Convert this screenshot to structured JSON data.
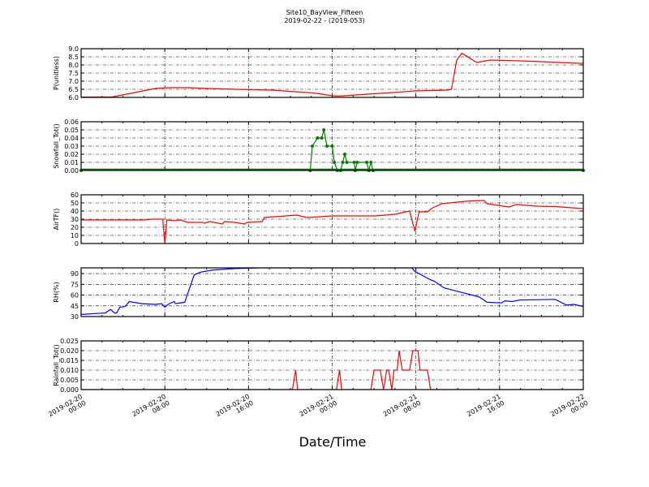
{
  "title": "Site10_BayView_Fifteen",
  "subtitle": "2019-02-22 - (2019-053)",
  "chart_data": {
    "type": "line",
    "xlabel": "Date/Time",
    "xlim": [
      "2019-02-20 00:00",
      "2019-02-22 00:00"
    ],
    "xticks": [
      "2019-02-20 00:00",
      "2019-02-20 08:00",
      "2019-02-20 16:00",
      "2019-02-21 00:00",
      "2019-02-21 08:00",
      "2019-02-21 16:00",
      "2019-02-22 00:00"
    ],
    "xtick_labels": [
      [
        "2019-02-20",
        "00:00"
      ],
      [
        "2019-02-20",
        "08:00"
      ],
      [
        "2019-02-20",
        "16:00"
      ],
      [
        "2019-02-21",
        "00:00"
      ],
      [
        "2019-02-21",
        "08:00"
      ],
      [
        "2019-02-21",
        "16:00"
      ],
      [
        "2019-02-22",
        "00:00"
      ]
    ],
    "grid": true,
    "panels": [
      {
        "ylabel": "P(unitless)",
        "color": "#ff0000",
        "markers": false,
        "ylim": [
          6.0,
          9.0
        ],
        "yticks": [
          "6.0",
          "6.5",
          "7.0",
          "7.5",
          "8.0",
          "8.5",
          "9.0"
        ],
        "points": [
          [
            "2019-02-20 00:00",
            6.02
          ],
          [
            "2019-02-20 03:00",
            6.03
          ],
          [
            "2019-02-20 07:06",
            6.55
          ],
          [
            "2019-02-20 08:30",
            6.6
          ],
          [
            "2019-02-20 10:12",
            6.6
          ],
          [
            "2019-02-20 12:00",
            6.55
          ],
          [
            "2019-02-20 14:42",
            6.5
          ],
          [
            "2019-02-20 18:12",
            6.45
          ],
          [
            "2019-02-20 21:36",
            6.3
          ],
          [
            "2019-02-20 22:30",
            6.25
          ],
          [
            "2019-02-21 00:00",
            6.1
          ],
          [
            "2019-02-21 00:42",
            6.08
          ],
          [
            "2019-02-21 03:48",
            6.22
          ],
          [
            "2019-02-21 05:54",
            6.3
          ],
          [
            "2019-02-21 07:54",
            6.4
          ],
          [
            "2019-02-21 11:00",
            6.45
          ],
          [
            "2019-02-21 11:24",
            6.5
          ],
          [
            "2019-02-21 11:54",
            8.3
          ],
          [
            "2019-02-21 12:24",
            8.72
          ],
          [
            "2019-02-21 13:48",
            8.15
          ],
          [
            "2019-02-21 15:06",
            8.3
          ],
          [
            "2019-02-21 18:00",
            8.25
          ],
          [
            "2019-02-21 23:42",
            8.1
          ],
          [
            "2019-02-22 00:00",
            8.1
          ]
        ]
      },
      {
        "ylabel": "Snowfall_Tot()",
        "color": "#007f00",
        "markers": true,
        "ylim": [
          0,
          0.06
        ],
        "yticks": [
          "0.00",
          "0.01",
          "0.02",
          "0.03",
          "0.04",
          "0.05",
          "0.06"
        ],
        "points": [
          [
            "2019-02-20 00:00",
            0
          ],
          [
            "2019-02-20 21:54",
            0
          ],
          [
            "2019-02-20 22:06",
            0.03
          ],
          [
            "2019-02-20 22:36",
            0.04
          ],
          [
            "2019-02-20 23:00",
            0.04
          ],
          [
            "2019-02-20 23:12",
            0.05
          ],
          [
            "2019-02-20 23:30",
            0.03
          ],
          [
            "2019-02-21 00:00",
            0.03
          ],
          [
            "2019-02-21 00:12",
            0.01
          ],
          [
            "2019-02-21 00:30",
            0
          ],
          [
            "2019-02-21 00:48",
            0
          ],
          [
            "2019-02-21 01:00",
            0.01
          ],
          [
            "2019-02-21 01:12",
            0.02
          ],
          [
            "2019-02-21 01:24",
            0.01
          ],
          [
            "2019-02-21 02:06",
            0.01
          ],
          [
            "2019-02-21 02:12",
            0
          ],
          [
            "2019-02-21 02:24",
            0.01
          ],
          [
            "2019-02-21 03:18",
            0.01
          ],
          [
            "2019-02-21 03:30",
            0
          ],
          [
            "2019-02-21 03:42",
            0.01
          ],
          [
            "2019-02-21 03:54",
            0
          ],
          [
            "2019-02-22 00:00",
            0
          ]
        ]
      },
      {
        "ylabel": "AirTF()",
        "color": "#ff0000",
        "markers": false,
        "ylim": [
          0,
          60
        ],
        "yticks": [
          "0",
          "10",
          "20",
          "30",
          "40",
          "50",
          "60"
        ],
        "points": [
          [
            "2019-02-20 00:00",
            29
          ],
          [
            "2019-02-20 06:00",
            29
          ],
          [
            "2019-02-20 06:48",
            30
          ],
          [
            "2019-02-20 07:48",
            30
          ],
          [
            "2019-02-20 08:00",
            0
          ],
          [
            "2019-02-20 08:12",
            29
          ],
          [
            "2019-02-20 08:54",
            28
          ],
          [
            "2019-02-20 09:30",
            29
          ],
          [
            "2019-02-20 10:12",
            26
          ],
          [
            "2019-02-20 11:36",
            26
          ],
          [
            "2019-02-20 11:48",
            25
          ],
          [
            "2019-02-20 12:18",
            27
          ],
          [
            "2019-02-20 13:30",
            24
          ],
          [
            "2019-02-20 13:42",
            27
          ],
          [
            "2019-02-20 14:42",
            26
          ],
          [
            "2019-02-20 15:36",
            24
          ],
          [
            "2019-02-20 15:54",
            26
          ],
          [
            "2019-02-20 17:18",
            27
          ],
          [
            "2019-02-20 17:30",
            32
          ],
          [
            "2019-02-20 20:36",
            35
          ],
          [
            "2019-02-20 21:36",
            32
          ],
          [
            "2019-02-21 00:00",
            34
          ],
          [
            "2019-02-21 04:06",
            34
          ],
          [
            "2019-02-21 06:00",
            36
          ],
          [
            "2019-02-21 07:24",
            40
          ],
          [
            "2019-02-21 07:54",
            15
          ],
          [
            "2019-02-21 08:18",
            39
          ],
          [
            "2019-02-21 09:06",
            39
          ],
          [
            "2019-02-21 09:36",
            44
          ],
          [
            "2019-02-21 10:30",
            49
          ],
          [
            "2019-02-21 12:42",
            52
          ],
          [
            "2019-02-21 14:30",
            53
          ],
          [
            "2019-02-21 14:48",
            49
          ],
          [
            "2019-02-21 16:54",
            45
          ],
          [
            "2019-02-21 17:36",
            48
          ],
          [
            "2019-02-21 19:36",
            46
          ],
          [
            "2019-02-21 21:18",
            45.5
          ],
          [
            "2019-02-22 00:00",
            43
          ]
        ]
      },
      {
        "ylabel": "RH(%)",
        "color": "#0000ff",
        "markers": false,
        "ylim": [
          30,
          98
        ],
        "yticks": [
          "30",
          "45",
          "60",
          "75",
          "90"
        ],
        "points": [
          [
            "2019-02-20 00:00",
            33
          ],
          [
            "2019-02-20 02:18",
            35
          ],
          [
            "2019-02-20 02:48",
            40
          ],
          [
            "2019-02-20 03:12",
            35
          ],
          [
            "2019-02-20 03:24",
            35
          ],
          [
            "2019-02-20 03:42",
            43
          ],
          [
            "2019-02-20 04:12",
            44
          ],
          [
            "2019-02-20 04:36",
            51
          ],
          [
            "2019-02-20 05:48",
            48
          ],
          [
            "2019-02-20 07:06",
            47
          ],
          [
            "2019-02-20 07:42",
            48
          ],
          [
            "2019-02-20 08:00",
            43
          ],
          [
            "2019-02-20 08:18",
            47
          ],
          [
            "2019-02-20 08:54",
            51
          ],
          [
            "2019-02-20 09:00",
            48
          ],
          [
            "2019-02-20 09:54",
            50
          ],
          [
            "2019-02-20 10:48",
            88
          ],
          [
            "2019-02-20 11:24",
            92
          ],
          [
            "2019-02-20 12:36",
            95
          ],
          [
            "2019-02-20 14:42",
            97
          ],
          [
            "2019-02-20 17:06",
            98
          ],
          [
            "2019-02-20 17:30",
            100
          ],
          [
            "2019-02-21 07:36",
            100
          ],
          [
            "2019-02-21 07:54",
            93
          ],
          [
            "2019-02-21 09:18",
            82
          ],
          [
            "2019-02-21 09:48",
            79
          ],
          [
            "2019-02-21 10:42",
            70
          ],
          [
            "2019-02-21 12:00",
            65
          ],
          [
            "2019-02-21 13:06",
            61
          ],
          [
            "2019-02-21 14:06",
            57
          ],
          [
            "2019-02-21 14:48",
            50
          ],
          [
            "2019-02-21 16:12",
            49
          ],
          [
            "2019-02-21 16:30",
            52
          ],
          [
            "2019-02-21 17:12",
            51
          ],
          [
            "2019-02-21 17:54",
            53
          ],
          [
            "2019-02-21 21:18",
            54
          ],
          [
            "2019-02-21 22:24",
            46
          ],
          [
            "2019-02-21 23:06",
            47
          ],
          [
            "2019-02-22 00:00",
            44
          ]
        ]
      },
      {
        "ylabel": "Rainfall_Tot()",
        "color": "#ff0000",
        "markers": false,
        "ylim": [
          0,
          0.025
        ],
        "yticks": [
          "0.000",
          "0.005",
          "0.010",
          "0.015",
          "0.020",
          "0.025"
        ],
        "points": [
          [
            "2019-02-20 00:00",
            0
          ],
          [
            "2019-02-20 20:12",
            0
          ],
          [
            "2019-02-20 20:30",
            0.01
          ],
          [
            "2019-02-20 20:42",
            0
          ],
          [
            "2019-02-21 00:24",
            0
          ],
          [
            "2019-02-21 00:42",
            0.01
          ],
          [
            "2019-02-21 00:54",
            0
          ],
          [
            "2019-02-21 03:42",
            0
          ],
          [
            "2019-02-21 04:00",
            0.01
          ],
          [
            "2019-02-21 04:36",
            0.01
          ],
          [
            "2019-02-21 04:54",
            0
          ],
          [
            "2019-02-21 05:12",
            0.01
          ],
          [
            "2019-02-21 05:24",
            0.01
          ],
          [
            "2019-02-21 05:42",
            0
          ],
          [
            "2019-02-21 05:54",
            0.01
          ],
          [
            "2019-02-21 06:12",
            0.01
          ],
          [
            "2019-02-21 06:24",
            0.02
          ],
          [
            "2019-02-21 06:42",
            0.01
          ],
          [
            "2019-02-21 07:24",
            0.01
          ],
          [
            "2019-02-21 07:42",
            0.02
          ],
          [
            "2019-02-21 08:12",
            0.02
          ],
          [
            "2019-02-21 08:24",
            0.01
          ],
          [
            "2019-02-21 09:06",
            0.01
          ],
          [
            "2019-02-21 09:24",
            0
          ],
          [
            "2019-02-22 00:00",
            0
          ]
        ]
      }
    ]
  }
}
